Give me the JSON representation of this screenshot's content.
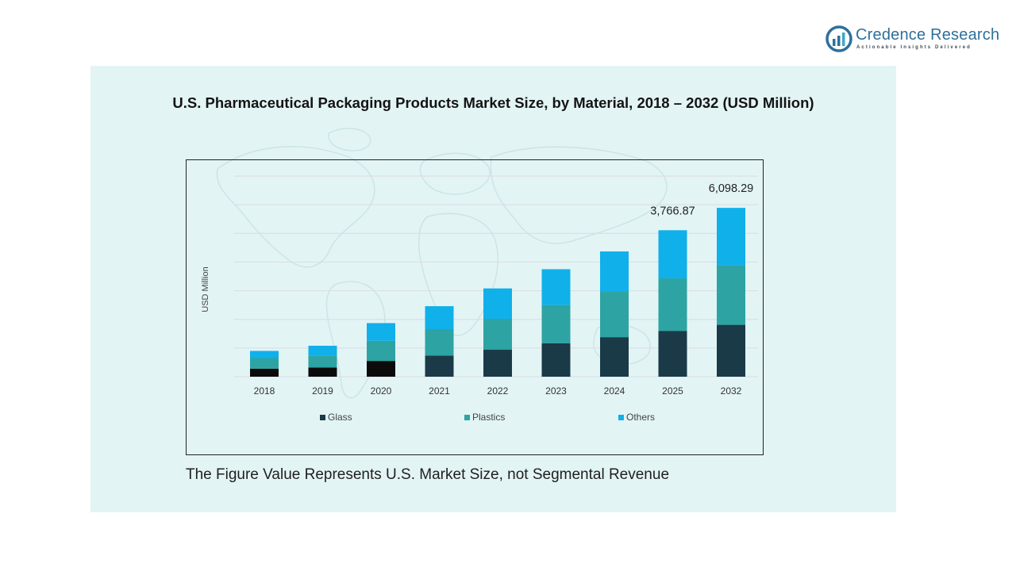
{
  "logo": {
    "name": "Credence Research",
    "tagline": "Actionable Insights Delivered"
  },
  "title": "U.S. Pharmaceutical Packaging Products Market Size, by Material, 2018 – 2032 (USD Million)",
  "footnote": "The Figure Value Represents U.S. Market Size, not Segmental Revenue",
  "colors": {
    "panel_bg": "#e3f4f5",
    "glass": "#1a3a48",
    "glass_early": "#0b0b0b",
    "plastics": "#2ea3a3",
    "others": "#10b0ea",
    "gridline": "#d8dde0",
    "logo": "#2f6f9a"
  },
  "chart_data": {
    "type": "bar",
    "stacked": true,
    "title": "U.S. Pharmaceutical Packaging Products Market Size, by Material, 2018 – 2032 (USD Million)",
    "xlabel": "",
    "ylabel": "USD Million",
    "ylim": [
      0,
      7000
    ],
    "grid": true,
    "legend_position": "bottom",
    "categories": [
      "2018",
      "2019",
      "2020",
      "2021",
      "2022",
      "2023",
      "2024",
      "2025",
      "2032"
    ],
    "series": [
      {
        "name": "Glass",
        "values": [
          280,
          320,
          550,
          740,
          940,
          1170,
          1380,
          1600,
          1810
        ]
      },
      {
        "name": "Plastics",
        "values": [
          370,
          420,
          700,
          920,
          1080,
          1330,
          1580,
          1830,
          2080
        ]
      },
      {
        "name": "Others",
        "values": [
          250,
          340,
          620,
          800,
          1060,
          1250,
          1410,
          1680,
          2000
        ]
      }
    ],
    "annotations": [
      {
        "category": "2025",
        "text": "3,766.87"
      },
      {
        "category": "2032",
        "text": "6,098.29"
      }
    ]
  }
}
